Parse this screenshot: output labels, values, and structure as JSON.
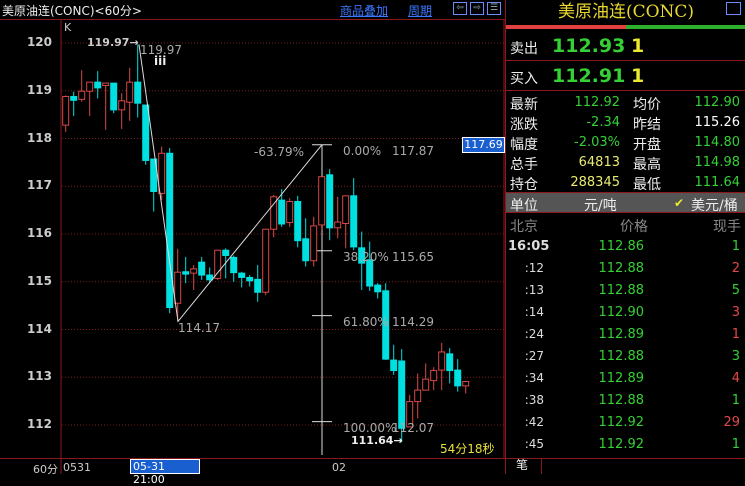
{
  "header": {
    "title": "美原油连(CONC)<60分>",
    "overlay_link": "商品叠加",
    "period_link": "周期",
    "buttons": [
      "arrow-left-icon",
      "arrow-right-icon",
      "layout-icon"
    ]
  },
  "chart": {
    "indicator_label": "K",
    "period_label": "60分",
    "x_labels": [
      "0531",
      "02"
    ],
    "cursor_date": "05-31 21:00",
    "cursor_price": "117.69",
    "countdown": "54分18秒",
    "annotations": {
      "high": "119.97",
      "high_arrow": "119.97→",
      "wave_label": "iii",
      "low_left": "114.17",
      "low_arrow": "111.64→",
      "retrace_pct": "-63.79%"
    },
    "fib_levels": [
      {
        "pct": "0.00%",
        "price": "117.87"
      },
      {
        "pct": "38.20%",
        "price": "115.65"
      },
      {
        "pct": "61.80%",
        "price": "114.29"
      },
      {
        "pct": "100.00%",
        "price": "112.07"
      }
    ]
  },
  "chart_data": {
    "type": "candlestick",
    "y_ticks": [
      "120",
      "119",
      "118",
      "117",
      "116",
      "115",
      "114",
      "113",
      "112"
    ],
    "ylim": [
      111.4,
      120.5
    ],
    "grid": true,
    "colors": {
      "up": "#d84848",
      "down": "#00e0e0"
    },
    "ohlc": [
      [
        118.28,
        118.9,
        118.14,
        118.88
      ],
      [
        118.88,
        118.98,
        118.47,
        118.8
      ],
      [
        118.82,
        119.43,
        118.77,
        118.99
      ],
      [
        118.99,
        119.18,
        118.47,
        119.18
      ],
      [
        119.18,
        119.41,
        118.84,
        119.06
      ],
      [
        119.11,
        119.16,
        118.18,
        119.16
      ],
      [
        119.16,
        119.16,
        118.53,
        118.6
      ],
      [
        118.6,
        118.95,
        118.2,
        118.79
      ],
      [
        118.76,
        119.48,
        118.37,
        119.18
      ],
      [
        119.18,
        119.97,
        118.44,
        118.74
      ],
      [
        118.7,
        118.7,
        117.45,
        117.54
      ],
      [
        117.57,
        117.57,
        116.47,
        116.89
      ],
      [
        116.85,
        117.83,
        116.71,
        117.69
      ],
      [
        117.69,
        117.8,
        114.34,
        114.46
      ],
      [
        114.55,
        115.69,
        114.17,
        115.2
      ],
      [
        115.21,
        115.52,
        114.97,
        115.16
      ],
      [
        115.18,
        115.35,
        114.83,
        115.27
      ],
      [
        115.41,
        115.52,
        115.04,
        115.14
      ],
      [
        115.14,
        115.3,
        114.97,
        115.04
      ],
      [
        115.07,
        115.66,
        115.04,
        115.66
      ],
      [
        115.66,
        115.7,
        115.07,
        115.55
      ],
      [
        115.51,
        115.55,
        115.0,
        115.19
      ],
      [
        115.18,
        115.21,
        114.88,
        115.09
      ],
      [
        115.09,
        115.14,
        114.9,
        115.02
      ],
      [
        115.05,
        115.35,
        114.58,
        114.78
      ],
      [
        114.78,
        116.1,
        114.72,
        116.1
      ],
      [
        116.1,
        116.82,
        115.93,
        116.78
      ],
      [
        116.71,
        116.94,
        116.15,
        116.21
      ],
      [
        116.24,
        116.75,
        116.15,
        116.68
      ],
      [
        116.68,
        116.8,
        115.72,
        115.86
      ],
      [
        115.9,
        116.33,
        115.32,
        115.44
      ],
      [
        115.44,
        116.36,
        115.32,
        116.17
      ],
      [
        116.19,
        117.2,
        116.08,
        117.2
      ],
      [
        117.24,
        117.36,
        115.87,
        116.13
      ],
      [
        116.13,
        116.78,
        115.91,
        116.25
      ],
      [
        116.22,
        116.8,
        115.7,
        116.8
      ],
      [
        116.8,
        117.17,
        115.66,
        115.73
      ],
      [
        115.71,
        116.05,
        114.83,
        115.39
      ],
      [
        115.46,
        115.84,
        114.81,
        114.91
      ],
      [
        114.93,
        114.97,
        114.65,
        114.79
      ],
      [
        114.81,
        114.97,
        113.36,
        113.38
      ],
      [
        113.36,
        113.68,
        113.05,
        113.14
      ],
      [
        113.34,
        113.59,
        111.64,
        111.93
      ],
      [
        111.96,
        112.63,
        111.96,
        112.49
      ],
      [
        112.49,
        113.08,
        112.14,
        112.73
      ],
      [
        112.73,
        113.29,
        112.73,
        112.96
      ],
      [
        112.93,
        113.21,
        112.73,
        113.14
      ],
      [
        113.15,
        113.72,
        112.73,
        113.53
      ],
      [
        113.49,
        113.61,
        112.87,
        113.14
      ],
      [
        113.15,
        113.38,
        112.7,
        112.82
      ],
      [
        112.82,
        112.91,
        112.66,
        112.91
      ]
    ]
  },
  "quote": {
    "title": "美原油连(CONC)",
    "bid_ask_ratio": 0.5,
    "ask": {
      "label": "卖出",
      "price": "112.93",
      "vol": "1"
    },
    "bid": {
      "label": "买入",
      "price": "112.91",
      "vol": "1"
    },
    "stats": [
      {
        "l1": "最新",
        "v1": "112.92",
        "c1": "#35d035",
        "l2": "均价",
        "v2": "112.90",
        "c2": "#35d035"
      },
      {
        "l1": "涨跌",
        "v1": "-2.34",
        "c1": "#35d035",
        "l2": "昨结",
        "v2": "115.26",
        "c2": "#ffffff"
      },
      {
        "l1": "幅度",
        "v1": "-2.03%",
        "c1": "#35d035",
        "l2": "开盘",
        "v2": "114.80",
        "c2": "#35d035"
      },
      {
        "l1": "总手",
        "v1": "64813",
        "c1": "#eaea70",
        "l2": "最高",
        "v2": "114.98",
        "c2": "#35d035"
      },
      {
        "l1": "持仓",
        "v1": "288345",
        "c1": "#eaea70",
        "l2": "最低",
        "v2": "111.64",
        "c2": "#35d035"
      }
    ],
    "unit": {
      "label": "单位",
      "opt1": "元/吨",
      "opt2": "美元/桶",
      "selected": "美元/桶"
    },
    "tick_header": {
      "time": "北京",
      "price": "价格",
      "vol": "现手"
    },
    "ticks": [
      {
        "time": "16:05",
        "price": "112.86",
        "vol": "1",
        "side": "down"
      },
      {
        "time": ":12",
        "price": "112.88",
        "vol": "2",
        "side": "up"
      },
      {
        "time": ":13",
        "price": "112.88",
        "vol": "5",
        "side": "down"
      },
      {
        "time": ":14",
        "price": "112.90",
        "vol": "3",
        "side": "up"
      },
      {
        "time": ":24",
        "price": "112.89",
        "vol": "1",
        "side": "up"
      },
      {
        "time": ":27",
        "price": "112.88",
        "vol": "3",
        "side": "down"
      },
      {
        "time": ":34",
        "price": "112.89",
        "vol": "4",
        "side": "up"
      },
      {
        "time": ":38",
        "price": "112.88",
        "vol": "1",
        "side": "down"
      },
      {
        "time": ":42",
        "price": "112.92",
        "vol": "29",
        "side": "up"
      },
      {
        "time": ":45",
        "price": "112.92",
        "vol": "1",
        "side": "down"
      }
    ],
    "tab": "笔"
  }
}
